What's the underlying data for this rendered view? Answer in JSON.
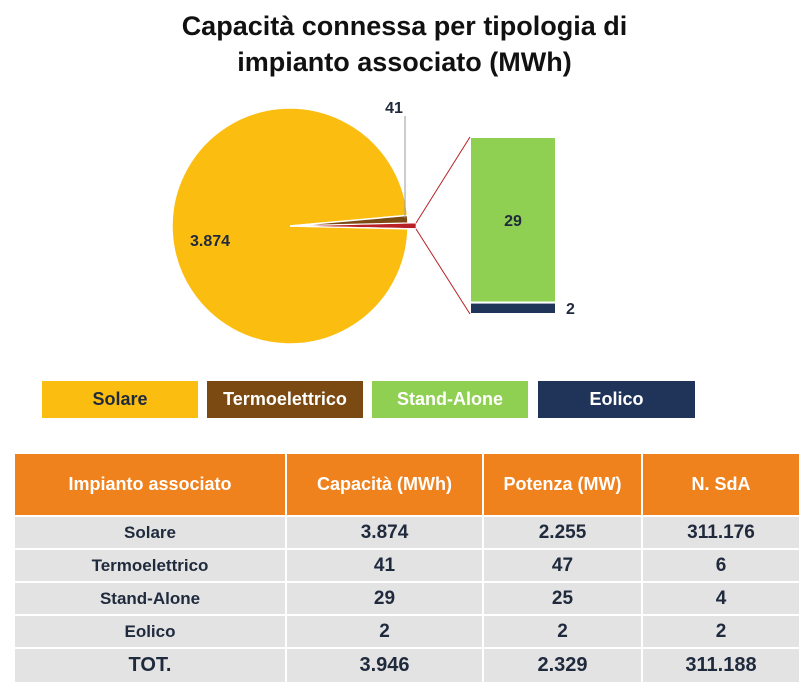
{
  "chart_data": {
    "type": "pie",
    "title": [
      "Capacità connessa per tipologia di",
      "impianto associato (MWh)"
    ],
    "slices": [
      {
        "label": "Solare",
        "value": 3874,
        "display": "3.874",
        "color": "#fbbd10"
      },
      {
        "label": "Termoelettrico",
        "value": 41,
        "display": "41",
        "color": "#7a4a12"
      },
      {
        "label": "Stand-Alone",
        "value": 29,
        "display": "29",
        "color": "#8fcf51"
      },
      {
        "label": "Eolico",
        "value": 2,
        "display": "2",
        "color": "#1f3458"
      }
    ],
    "breakout": {
      "type": "stacked-bar",
      "members": [
        "Stand-Alone",
        "Eolico"
      ],
      "values": [
        29,
        2
      ],
      "connector_color": "#b72025"
    },
    "legend": {
      "placement": "bottom",
      "text_colors": [
        "#1f2a3d",
        "#ffffff",
        "#ffffff",
        "#ffffff"
      ]
    }
  },
  "table": {
    "headers": [
      "Impianto associato",
      "Capacità (MWh)",
      "Potenza (MW)",
      "N. SdA"
    ],
    "rows": [
      {
        "name": "Solare",
        "capacita": "3.874",
        "potenza": "2.255",
        "sda": "311.176"
      },
      {
        "name": "Termoelettrico",
        "capacita": "41",
        "potenza": "47",
        "sda": "6"
      },
      {
        "name": "Stand-Alone",
        "capacita": "29",
        "potenza": "25",
        "sda": "4"
      },
      {
        "name": "Eolico",
        "capacita": "2",
        "potenza": "2",
        "sda": "2"
      }
    ],
    "total": {
      "name": "TOT.",
      "capacita": "3.946",
      "potenza": "2.329",
      "sda": "311.188"
    },
    "header_color": "#f0821e",
    "row_color": "#e3e3e3"
  }
}
